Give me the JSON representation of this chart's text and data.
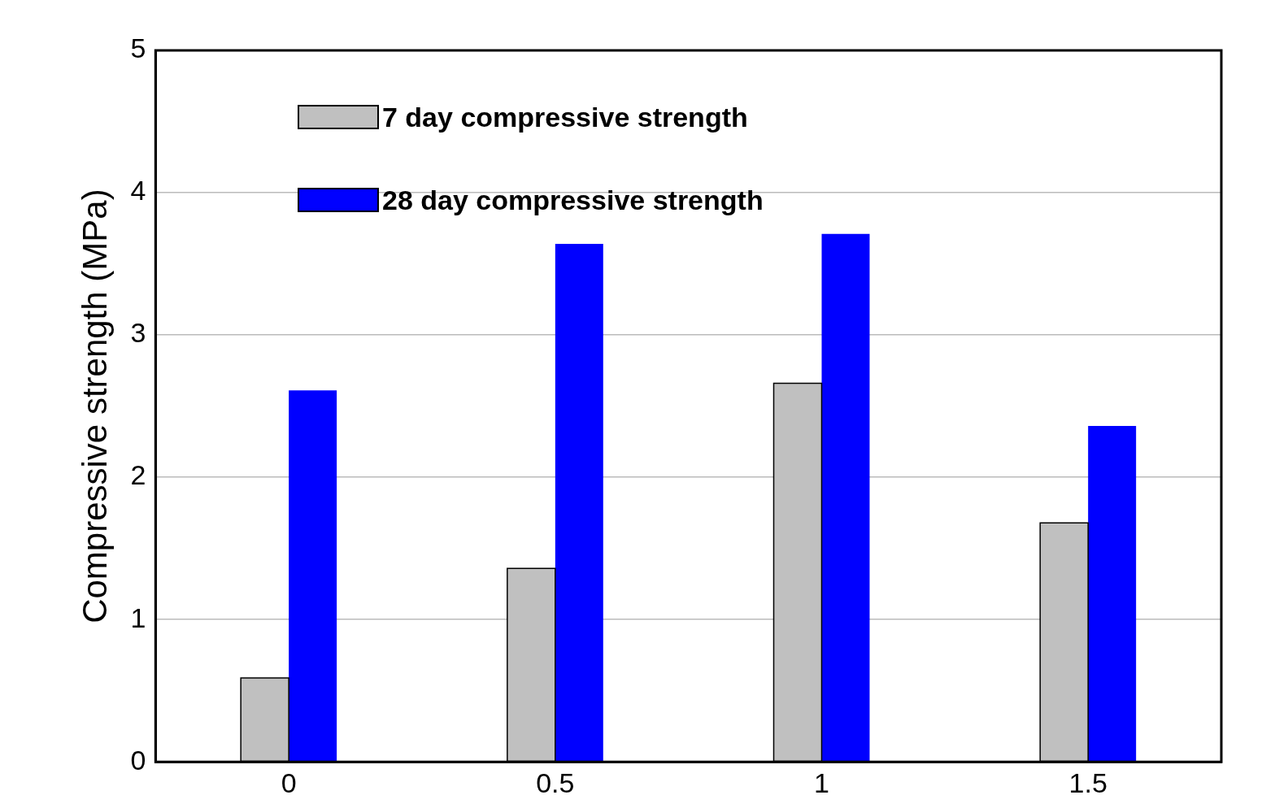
{
  "chart_data": {
    "type": "bar",
    "ylabel": "Compressive strength (MPa)",
    "categories": [
      "0",
      "0.5",
      "1",
      "1.5"
    ],
    "series": [
      {
        "name": "7 day compressive strength",
        "color": "#c0c0c0",
        "values": [
          0.59,
          1.36,
          2.66,
          1.68
        ]
      },
      {
        "name": "28 day compressive strength",
        "color": "#0000ff",
        "values": [
          2.61,
          3.64,
          3.71,
          2.36
        ]
      }
    ],
    "ylim": [
      0,
      5
    ],
    "yticks": [
      0,
      1,
      2,
      3,
      4,
      5
    ],
    "grid": "y",
    "legend": "top left"
  }
}
